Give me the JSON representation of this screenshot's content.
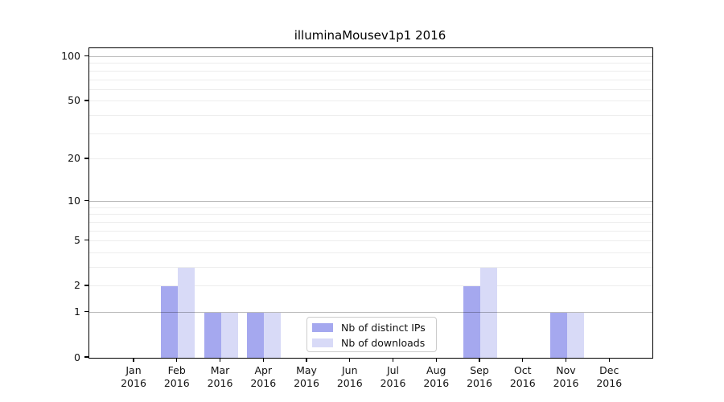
{
  "chart_data": {
    "type": "bar",
    "title": "illuminaMousev1p1 2016",
    "categories": [
      "Jan",
      "Feb",
      "Mar",
      "Apr",
      "May",
      "Jun",
      "Jul",
      "Aug",
      "Sep",
      "Oct",
      "Nov",
      "Dec"
    ],
    "year_label": "2016",
    "series": [
      {
        "name": "Nb of distinct IPs",
        "color": "#a5a8ef",
        "values": [
          0,
          2,
          1,
          1,
          0,
          0,
          0,
          0,
          2,
          0,
          1,
          0
        ]
      },
      {
        "name": "Nb of downloads",
        "color": "#d8daf7",
        "values": [
          0,
          3,
          1,
          1,
          0,
          0,
          0,
          0,
          3,
          0,
          1,
          0
        ]
      }
    ],
    "yscale": "log1p",
    "ylim": [
      0,
      114
    ],
    "yticks": [
      0,
      1,
      2,
      5,
      10,
      20,
      50,
      100
    ],
    "ygrid_major": [
      1,
      10,
      100
    ],
    "ygrid_minor": [
      2,
      3,
      4,
      5,
      6,
      7,
      8,
      9,
      20,
      30,
      40,
      50,
      60,
      70,
      80,
      90
    ],
    "grid": true,
    "legend_position": "lower-center-inside",
    "background_color": "#ffffff",
    "text_color": "#111111"
  }
}
